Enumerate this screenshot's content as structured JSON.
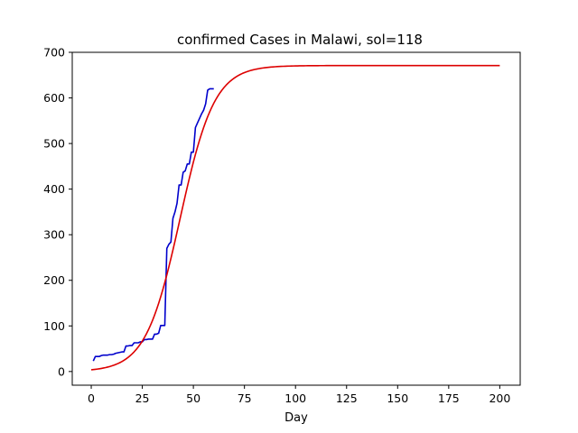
{
  "chart_data": {
    "type": "line",
    "title": "confirmed Cases in Malawi, sol=118",
    "xlabel": "Day",
    "ylabel": "",
    "xlim": [
      -9.3,
      210
    ],
    "ylim": [
      -30,
      700
    ],
    "xticks": [
      0,
      25,
      50,
      75,
      100,
      125,
      150,
      175,
      200
    ],
    "yticks": [
      0,
      100,
      200,
      300,
      400,
      500,
      600,
      700
    ],
    "grid": false,
    "series": [
      {
        "color": "#0000cc",
        "style": "step",
        "x": [
          1,
          2,
          3,
          4,
          5,
          6,
          7,
          8,
          9,
          10,
          11,
          12,
          13,
          14,
          15,
          16,
          17,
          18,
          19,
          20,
          21,
          22,
          23,
          24,
          25,
          26,
          27,
          28,
          29,
          30,
          31,
          32,
          33,
          34,
          35,
          36,
          37,
          38,
          39,
          40,
          41,
          42,
          43,
          44,
          45,
          46,
          47,
          48,
          49,
          50,
          51,
          52,
          53,
          54,
          55,
          56,
          57,
          58,
          59,
          60
        ],
        "y": [
          23,
          33,
          33,
          33,
          35,
          36,
          36,
          36,
          37,
          37,
          38,
          40,
          41,
          42,
          43,
          43,
          56,
          56,
          57,
          57,
          63,
          63,
          63,
          65,
          65,
          70,
          70,
          71,
          71,
          71,
          82,
          82,
          84,
          101,
          101,
          101,
          270,
          279,
          284,
          336,
          350,
          369,
          409,
          409,
          437,
          440,
          455,
          455,
          481,
          481,
          535,
          545,
          555,
          565,
          573,
          587,
          617,
          620,
          620,
          620
        ]
      },
      {
        "color": "#dd0000",
        "style": "logistic",
        "K": 671,
        "r": 0.119,
        "t0": 43.5,
        "x_range": [
          0,
          200
        ]
      }
    ]
  }
}
